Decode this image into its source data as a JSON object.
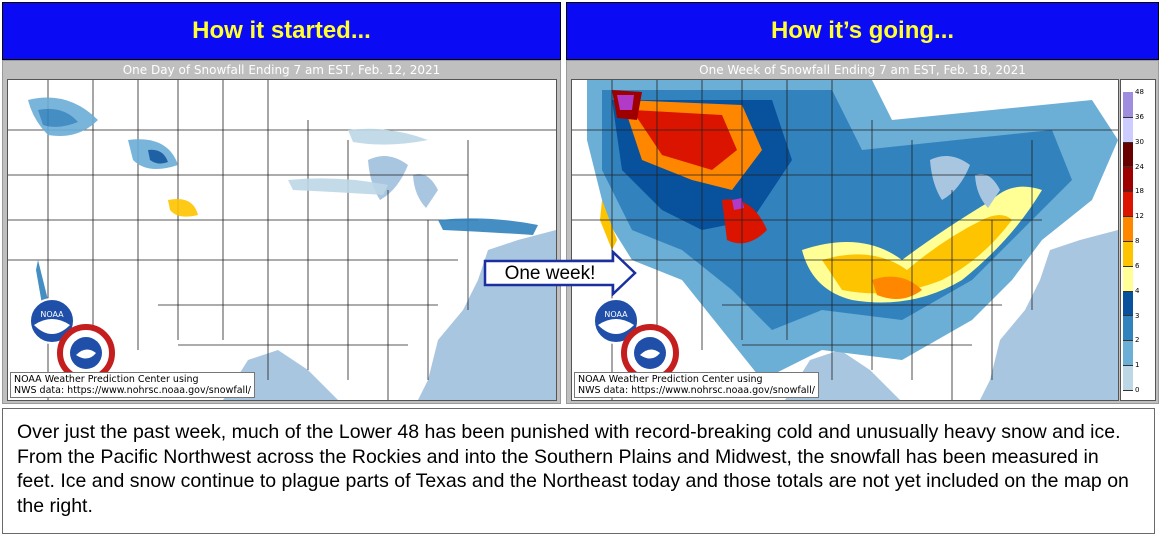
{
  "headers": {
    "left": "How it started...",
    "right": "How it’s going..."
  },
  "maps": {
    "left": {
      "title": "One Day of Snowfall Ending 7 am EST, Feb. 12, 2021",
      "credit_line1": "NOAA Weather Prediction Center using",
      "credit_line2": "NWS data: https://www.nohrsc.noaa.gov/snowfall/"
    },
    "right": {
      "title": "One Week of Snowfall Ending 7 am EST, Feb. 18, 2021",
      "credit_line1": "NOAA Weather Prediction Center using",
      "credit_line2": "NWS data: https://www.nohrsc.noaa.gov/snowfall/"
    }
  },
  "logos": {
    "noaa_text": "NOAA",
    "nws_text": "NATIONAL WEATHER SERVICE"
  },
  "colorbar": {
    "levels": [
      {
        "label": "0",
        "color": "#ffffff"
      },
      {
        "label": "1",
        "color": "#bdd7e7"
      },
      {
        "label": "2",
        "color": "#6baed6"
      },
      {
        "label": "3",
        "color": "#3182bd"
      },
      {
        "label": "4",
        "color": "#08519c"
      },
      {
        "label": "6",
        "color": "#ffff96"
      },
      {
        "label": "8",
        "color": "#ffc400"
      },
      {
        "label": "12",
        "color": "#ff8700"
      },
      {
        "label": "18",
        "color": "#db1400"
      },
      {
        "label": "24",
        "color": "#9e0000"
      },
      {
        "label": "30",
        "color": "#690000"
      },
      {
        "label": "36",
        "color": "#ccccff"
      },
      {
        "label": "48",
        "color": "#9f8ddd"
      }
    ]
  },
  "arrow_label": "One week!",
  "caption": "Over just the past week, much of the Lower 48 has been punished with record-breaking cold and unusually heavy snow and ice. From the Pacific Northwest across the Rockies and into the Southern Plains and Midwest, the snowfall has been measured in feet. Ice and snow continue to plague parts of Texas and the Northeast today and those totals are not yet included on the map on the right.",
  "colors": {
    "header_bg": "#0a0af5",
    "header_text": "#ffff33",
    "ocean": "#a9c6e0",
    "land": "#ffffff"
  }
}
